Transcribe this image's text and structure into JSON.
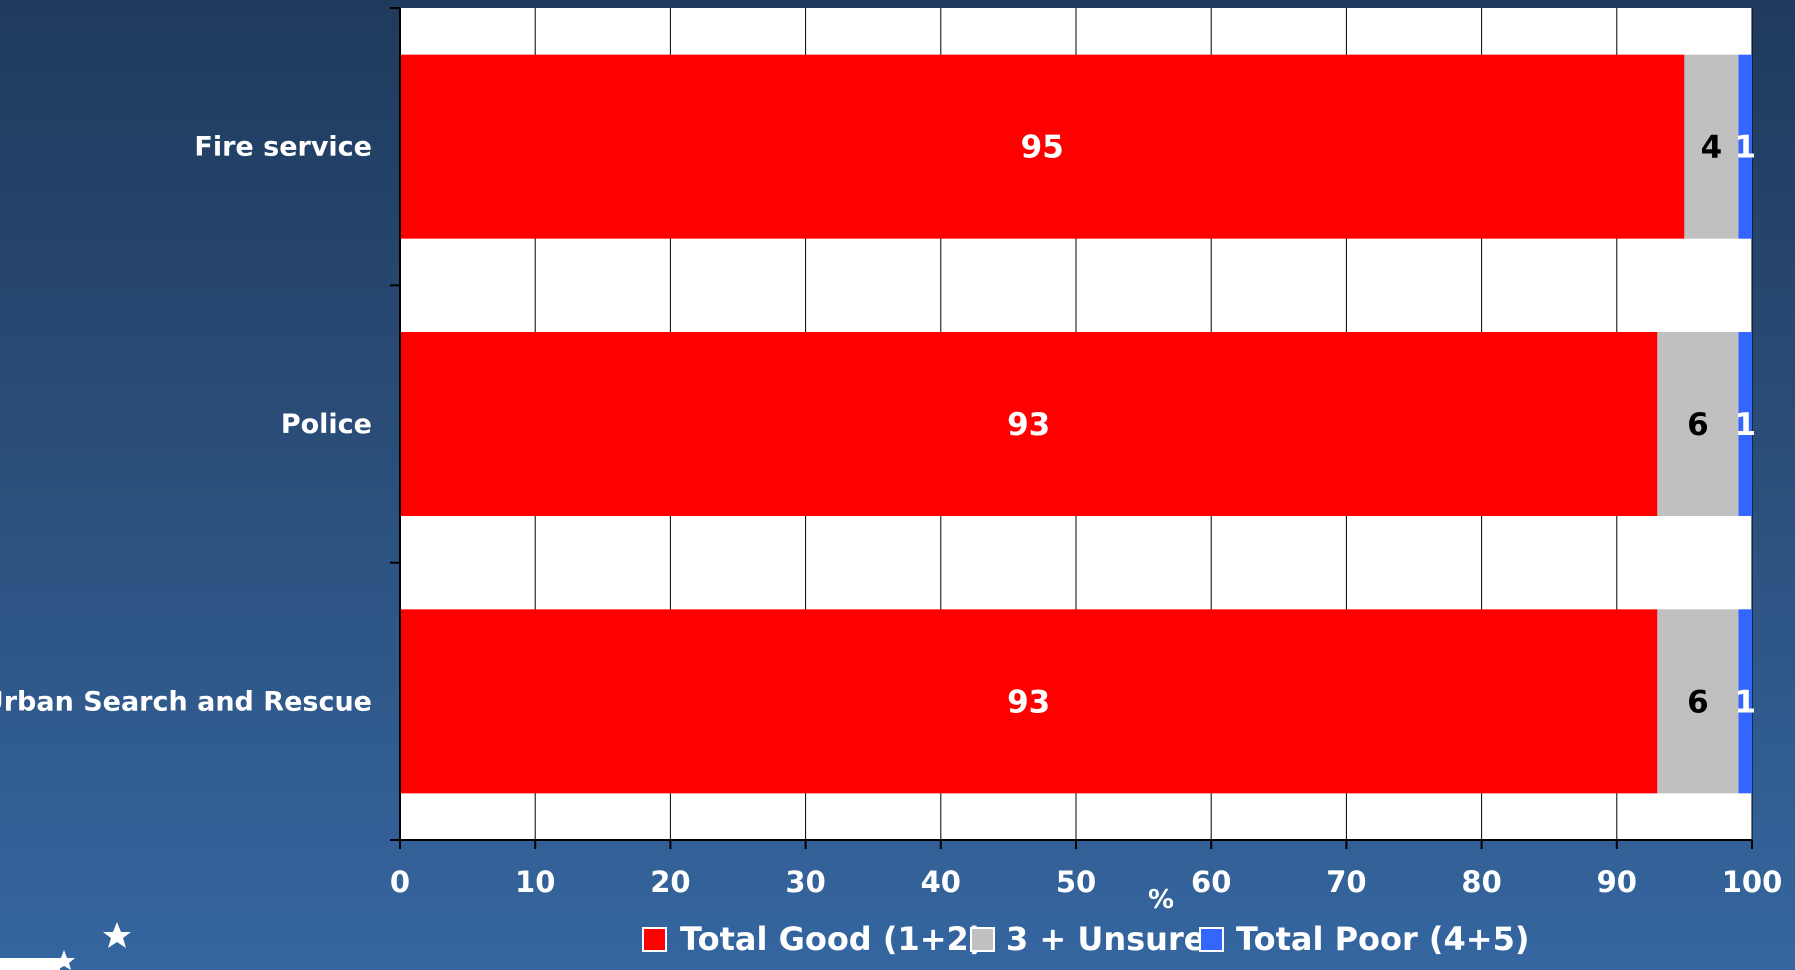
{
  "chart_data": {
    "type": "bar",
    "orientation": "horizontal",
    "stacked": true,
    "categories": [
      "Fire service",
      "Police",
      "Urban Search and Rescue"
    ],
    "series": [
      {
        "name": "Total Good (1+2)",
        "values": [
          95,
          93,
          93
        ],
        "color": "#ff0000",
        "label_color": "#ffffff"
      },
      {
        "name": "3 + Unsure",
        "values": [
          4,
          6,
          6
        ],
        "color": "#c0c0c0",
        "label_color": "#000000"
      },
      {
        "name": "Total Poor (4+5)",
        "values": [
          1,
          1,
          1
        ],
        "color": "#3366ff",
        "label_color": "#ffffff"
      }
    ],
    "xlabel": "%",
    "ylabel": "",
    "title": "",
    "xlim": [
      0,
      100
    ],
    "xticks": [
      0,
      10,
      20,
      30,
      40,
      50,
      60,
      70,
      80,
      90,
      100
    ],
    "grid": "vertical",
    "legend_position": "bottom"
  },
  "colors": {
    "plot_background": "#ffffff",
    "gridline": "#000000"
  }
}
